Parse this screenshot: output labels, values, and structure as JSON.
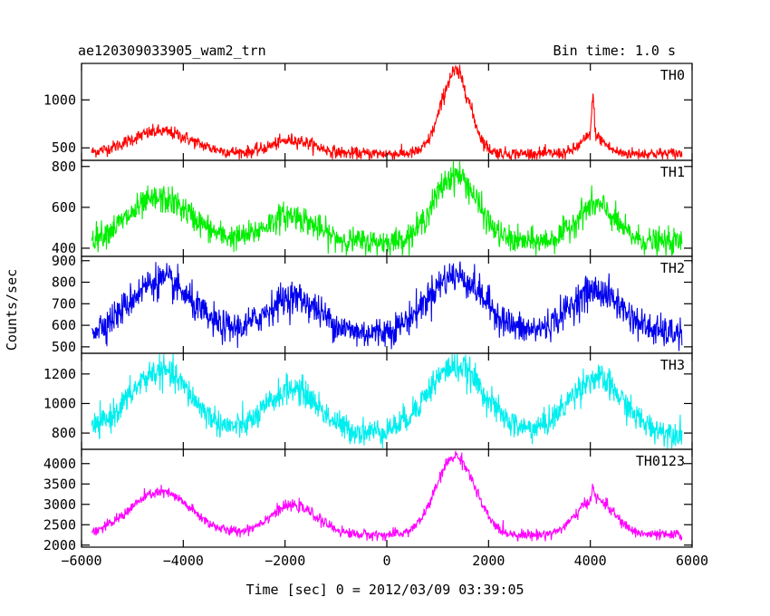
{
  "header": {
    "left_title": "ae120309033905_wam2_trn",
    "right_title": "Bin time: 1.0 s"
  },
  "chart_data": {
    "type": "line",
    "ylabel": "Counts/sec",
    "xlabel": "Time [sec] 0 = 2012/03/09 03:39:05",
    "xlim": [
      -6000,
      6000
    ],
    "x_ticks": [
      -6000,
      -4000,
      -2000,
      0,
      2000,
      4000,
      6000
    ],
    "x_tick_labels": [
      "−6000",
      "−4000",
      "−2000",
      "0",
      "2000",
      "4000",
      "6000"
    ],
    "x_data_range": [
      -5800,
      5800
    ],
    "panels": [
      {
        "name": "TH0",
        "color": "#ff0000",
        "ylim": [
          370,
          1380
        ],
        "y_ticks": [
          500,
          1000
        ],
        "baseline": 440,
        "noise": 35,
        "peaks": [
          {
            "x": -4450,
            "width": 600,
            "height": 230
          },
          {
            "x": -1850,
            "width": 420,
            "height": 140
          },
          {
            "x": 1350,
            "width": 280,
            "height": 850
          },
          {
            "x": 4050,
            "width": 220,
            "height": 190
          },
          {
            "x": 4050,
            "width": 25,
            "height": 380
          }
        ]
      },
      {
        "name": "TH1",
        "color": "#00ee00",
        "ylim": [
          360,
          830
        ],
        "y_ticks": [
          400,
          600,
          800
        ],
        "baseline": 430,
        "noise": 35,
        "peaks": [
          {
            "x": -4450,
            "width": 620,
            "height": 210
          },
          {
            "x": -1900,
            "width": 480,
            "height": 130
          },
          {
            "x": 1350,
            "width": 420,
            "height": 330
          },
          {
            "x": 4100,
            "width": 380,
            "height": 180
          }
        ]
      },
      {
        "name": "TH2",
        "color": "#0000ee",
        "ylim": [
          470,
          920
        ],
        "y_ticks": [
          500,
          600,
          700,
          800,
          900
        ],
        "baseline": 560,
        "noise": 40,
        "peaks": [
          {
            "x": -4450,
            "width": 600,
            "height": 250
          },
          {
            "x": -1850,
            "width": 520,
            "height": 170
          },
          {
            "x": 1350,
            "width": 560,
            "height": 270
          },
          {
            "x": 4100,
            "width": 520,
            "height": 200
          }
        ]
      },
      {
        "name": "TH3",
        "color": "#00eeee",
        "ylim": [
          690,
          1340
        ],
        "y_ticks": [
          800,
          1000,
          1200
        ],
        "baseline": 800,
        "noise": 50,
        "peaks": [
          {
            "x": -4450,
            "width": 600,
            "height": 420
          },
          {
            "x": -1850,
            "width": 500,
            "height": 300
          },
          {
            "x": 1350,
            "width": 560,
            "height": 450
          },
          {
            "x": 4100,
            "width": 520,
            "height": 370
          }
        ]
      },
      {
        "name": "TH0123",
        "color": "#ff00ff",
        "ylim": [
          1950,
          4350
        ],
        "y_ticks": [
          2000,
          2500,
          3000,
          3500,
          4000
        ],
        "baseline": 2250,
        "noise": 70,
        "peaks": [
          {
            "x": -4450,
            "width": 600,
            "height": 1050
          },
          {
            "x": -1850,
            "width": 470,
            "height": 720
          },
          {
            "x": 1350,
            "width": 380,
            "height": 1930
          },
          {
            "x": 4100,
            "width": 360,
            "height": 880
          },
          {
            "x": 4050,
            "width": 25,
            "height": 300
          }
        ]
      }
    ]
  }
}
